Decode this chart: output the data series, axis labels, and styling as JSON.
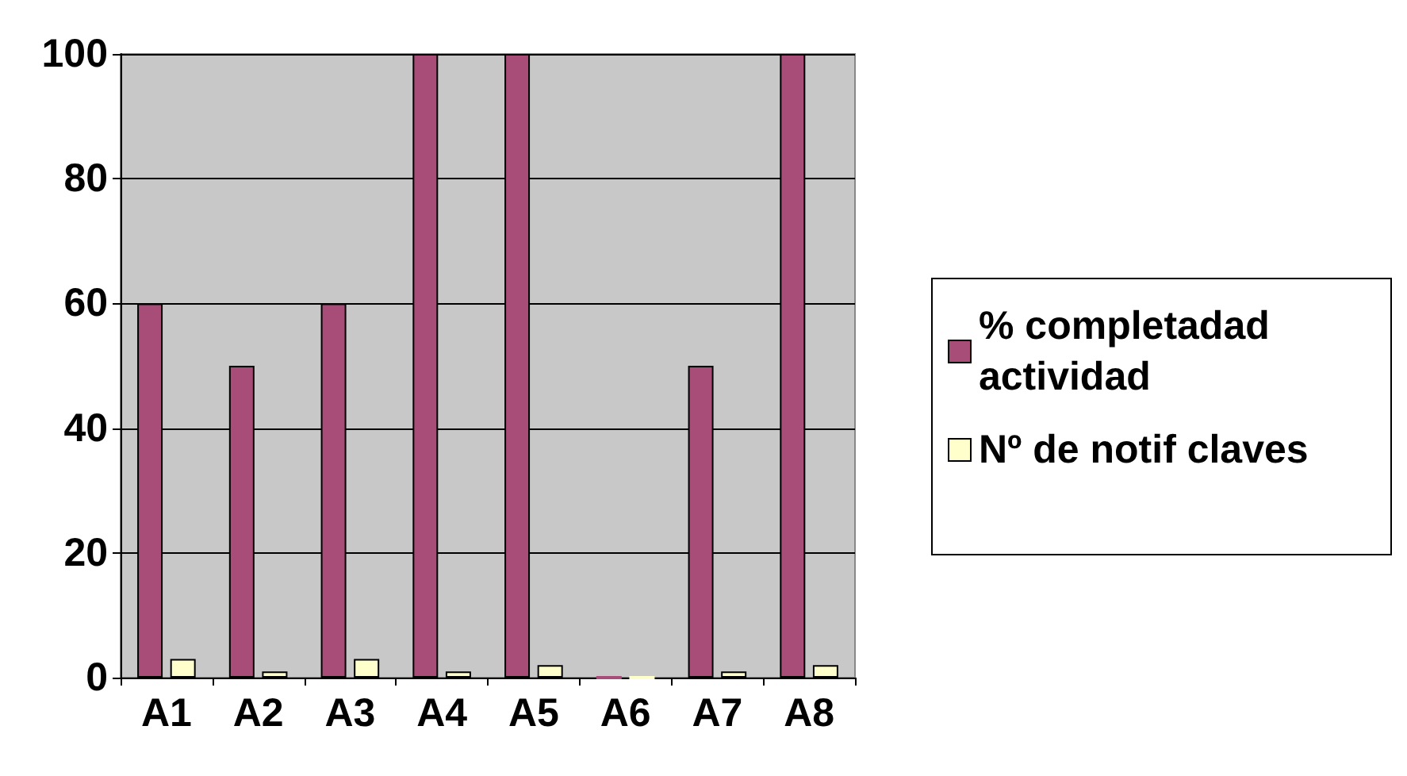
{
  "chart_data": {
    "type": "bar",
    "categories": [
      "A1",
      "A2",
      "A3",
      "A4",
      "A5",
      "A6",
      "A7",
      "A8"
    ],
    "series": [
      {
        "name": "% completadad actividad",
        "color": "#a84c78",
        "values": [
          60,
          50,
          60,
          100,
          100,
          0,
          50,
          100
        ]
      },
      {
        "name": "Nº de notif claves",
        "color": "#ffffcc",
        "values": [
          3,
          1,
          3,
          1,
          2,
          0,
          1,
          2
        ]
      }
    ],
    "ylim": [
      0,
      100
    ],
    "yticks": [
      0,
      20,
      40,
      60,
      80,
      100
    ],
    "grid": "y",
    "legend": "right"
  }
}
